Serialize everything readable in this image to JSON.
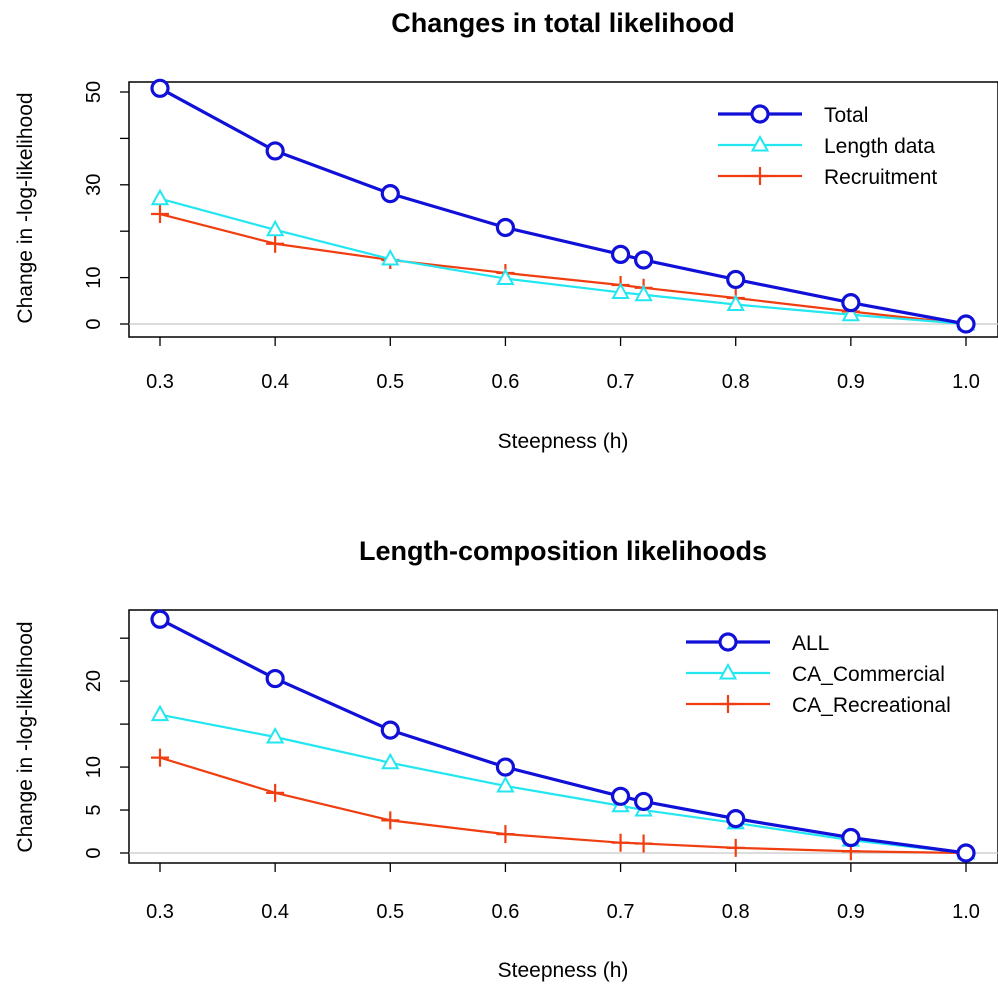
{
  "chart_data": [
    {
      "type": "line",
      "title": "Changes in total likelihood",
      "xlabel": "Steepness (h)",
      "ylabel": "Change in -log-likelihood",
      "xlim": [
        0.3,
        1.0
      ],
      "ylim": [
        0,
        50
      ],
      "xticks": [
        "0.3",
        "0.4",
        "0.5",
        "0.6",
        "0.7",
        "0.8",
        "0.9",
        "1.0"
      ],
      "yticks": [
        "0",
        "10",
        "30",
        "50"
      ],
      "yticks_unlabeled": [
        20,
        40
      ],
      "legend_position": "top-right",
      "x": [
        0.3,
        0.4,
        0.5,
        0.6,
        0.7,
        0.72,
        0.8,
        0.9,
        1.0
      ],
      "series": [
        {
          "name": "Total",
          "color": "#1010d8",
          "marker": "circle",
          "values": [
            50.8,
            37.3,
            28.1,
            20.8,
            15.0,
            13.8,
            9.6,
            4.6,
            0
          ]
        },
        {
          "name": "Length data",
          "color": "#22e6f0",
          "marker": "triangle",
          "values": [
            27.0,
            20.3,
            14.0,
            9.8,
            6.8,
            6.3,
            4.2,
            2.0,
            0
          ]
        },
        {
          "name": "Recruitment",
          "color": "#f03e10",
          "marker": "plus",
          "values": [
            23.7,
            17.3,
            13.8,
            11.0,
            8.4,
            7.8,
            5.6,
            2.7,
            0
          ]
        }
      ]
    },
    {
      "type": "line",
      "title": "Length-composition likelihoods",
      "xlabel": "Steepness (h)",
      "ylabel": "Change in -log-likelihood",
      "xlim": [
        0.3,
        1.0
      ],
      "ylim": [
        0,
        27
      ],
      "xticks": [
        "0.3",
        "0.4",
        "0.5",
        "0.6",
        "0.7",
        "0.8",
        "0.9",
        "1.0"
      ],
      "yticks": [
        "0",
        "5",
        "10",
        "20"
      ],
      "yticks_unlabeled": [
        15,
        25
      ],
      "legend_position": "top-right",
      "x": [
        0.3,
        0.4,
        0.5,
        0.6,
        0.7,
        0.72,
        0.8,
        0.9,
        1.0
      ],
      "series": [
        {
          "name": "ALL",
          "color": "#1010d8",
          "marker": "circle",
          "values": [
            27.2,
            20.3,
            14.3,
            10.0,
            6.6,
            6.0,
            4.0,
            1.8,
            0
          ]
        },
        {
          "name": "CA_Commercial",
          "color": "#22e6f0",
          "marker": "triangle",
          "values": [
            16.1,
            13.5,
            10.5,
            7.8,
            5.5,
            5.0,
            3.5,
            1.5,
            0
          ]
        },
        {
          "name": "CA_Recreational",
          "color": "#f03e10",
          "marker": "plus",
          "values": [
            11.1,
            7.0,
            3.8,
            2.2,
            1.2,
            1.1,
            0.6,
            0.2,
            0
          ]
        }
      ]
    }
  ]
}
